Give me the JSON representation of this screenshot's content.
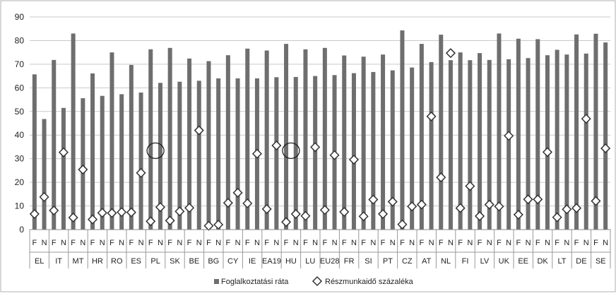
{
  "chart_data": {
    "type": "bar",
    "ylim": [
      0,
      90
    ],
    "yticks": [
      0,
      10,
      20,
      30,
      40,
      50,
      60,
      70,
      80,
      90
    ],
    "grid": true,
    "legend_position": "bottom",
    "categories": [
      "EL",
      "IT",
      "MT",
      "HR",
      "RO",
      "ES",
      "PL",
      "SK",
      "BE",
      "BG",
      "CY",
      "IE",
      "EA19",
      "HU",
      "LU",
      "EU28",
      "FR",
      "SI",
      "PT",
      "CZ",
      "AT",
      "NL",
      "FI",
      "LV",
      "UK",
      "EE",
      "DK",
      "LT",
      "DE",
      "SE"
    ],
    "subcategories": [
      "F",
      "N"
    ],
    "series": [
      {
        "name": "Foglalkoztatási ráta",
        "type": "bar",
        "values": [
          [
            65.7,
            46.8
          ],
          [
            71.8,
            51.5
          ],
          [
            83.0,
            55.6
          ],
          [
            66.1,
            56.6
          ],
          [
            75.0,
            57.3
          ],
          [
            69.7,
            58.0
          ],
          [
            76.3,
            62.1
          ],
          [
            76.9,
            62.6
          ],
          [
            72.4,
            63.0
          ],
          [
            71.3,
            64.0
          ],
          [
            73.8,
            64.0
          ],
          [
            76.6,
            64.0
          ],
          [
            75.8,
            64.5
          ],
          [
            78.6,
            64.6
          ],
          [
            76.3,
            65.0
          ],
          [
            76.9,
            65.4
          ],
          [
            73.7,
            66.2
          ],
          [
            73.2,
            66.7
          ],
          [
            74.1,
            67.4
          ],
          [
            84.3,
            68.6
          ],
          [
            78.6,
            70.9
          ],
          [
            82.5,
            71.7
          ],
          [
            75.0,
            71.7
          ],
          [
            74.7,
            71.8
          ],
          [
            83.0,
            72.1
          ],
          [
            80.8,
            72.6
          ],
          [
            80.6,
            73.8
          ],
          [
            76.1,
            74.1
          ],
          [
            82.6,
            74.5
          ],
          [
            82.9,
            79.2
          ]
        ]
      },
      {
        "name": "Részmunkaidő százaléka",
        "type": "scatter",
        "values": [
          [
            6.6,
            13.8
          ],
          [
            8.1,
            32.7
          ],
          [
            5.1,
            25.4
          ],
          [
            4.3,
            7.1
          ],
          [
            7.0,
            7.4
          ],
          [
            7.3,
            24.0
          ],
          [
            3.5,
            9.5
          ],
          [
            3.8,
            7.7
          ],
          [
            9.2,
            42.0
          ],
          [
            1.6,
            2.1
          ],
          [
            11.3,
            15.6
          ],
          [
            11.1,
            32.1
          ],
          [
            8.7,
            35.6
          ],
          [
            3.2,
            6.6
          ],
          [
            5.8,
            34.9
          ],
          [
            8.3,
            31.5
          ],
          [
            7.5,
            29.6
          ],
          [
            5.6,
            12.7
          ],
          [
            6.6,
            11.8
          ],
          [
            2.2,
            9.8
          ],
          [
            10.6,
            47.9
          ],
          [
            22.1,
            74.7
          ],
          [
            9.1,
            18.4
          ],
          [
            5.7,
            10.6
          ],
          [
            9.8,
            39.7
          ],
          [
            6.3,
            12.8
          ],
          [
            12.8,
            32.8
          ],
          [
            5.2,
            8.6
          ],
          [
            9.1,
            46.9
          ],
          [
            12.1,
            34.4
          ]
        ]
      }
    ],
    "empty_circles": [
      {
        "category": "PL",
        "sub": "F",
        "y": 33.4
      },
      {
        "category": "HU",
        "sub": "F",
        "y": 33.4
      }
    ],
    "colors": {
      "bar": "#6e6e6e",
      "marker_fill": "#ffffff",
      "marker_stroke": "#333333",
      "grid": "#c9c9c9",
      "frame": "#b0b0b0"
    }
  }
}
